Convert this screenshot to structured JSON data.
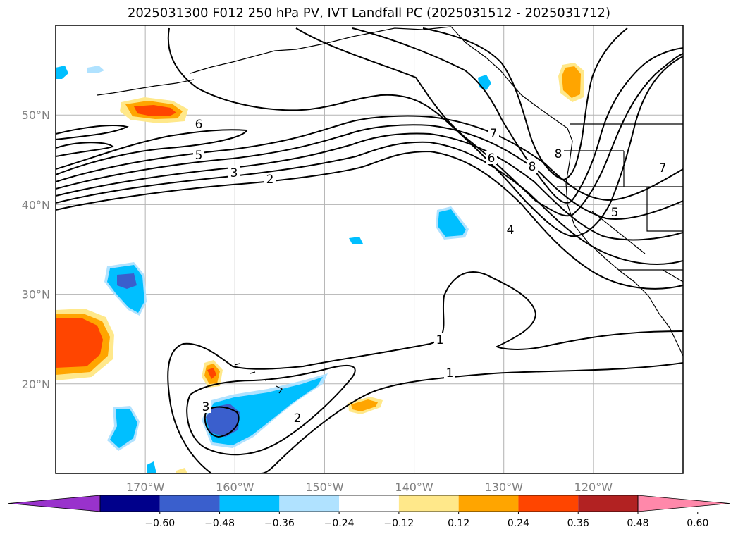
{
  "title": "2025031300 F012 250 hPa PV, IVT Landfall PC (2025031512 - 2025031712)",
  "map": {
    "projection": "PlateCarree",
    "lon_range": [
      -180,
      -110
    ],
    "lat_range": [
      10,
      60
    ],
    "lon_ticks": [
      {
        "value": -170,
        "label": "170°W"
      },
      {
        "value": -160,
        "label": "160°W"
      },
      {
        "value": -150,
        "label": "150°W"
      },
      {
        "value": -140,
        "label": "140°W"
      },
      {
        "value": -130,
        "label": "130°W"
      },
      {
        "value": -120,
        "label": "120°W"
      }
    ],
    "lat_ticks": [
      {
        "value": 50,
        "label": "50°N"
      },
      {
        "value": 40,
        "label": "40°N"
      },
      {
        "value": 30,
        "label": "30°N"
      },
      {
        "value": 20,
        "label": "20°N"
      }
    ],
    "grid": true,
    "contour_labels": [
      "1",
      "1",
      "2",
      "2",
      "3",
      "3",
      "4",
      "5",
      "5",
      "6",
      "6",
      "7",
      "7",
      "8",
      "8"
    ]
  },
  "colorbar": {
    "orientation": "horizontal",
    "extend": "both",
    "levels": [
      "-0.60",
      "-0.48",
      "-0.36",
      "-0.24",
      "-0.12",
      "0.12",
      "0.24",
      "0.36",
      "0.48",
      "0.60"
    ],
    "colors": [
      "#9932cc",
      "#00008b",
      "#3a5fcd",
      "#00bfff",
      "#b0e2ff",
      "#ffffff",
      "#ffe88a",
      "#ffa500",
      "#ff4500",
      "#b22222",
      "#ff88aa"
    ]
  }
}
